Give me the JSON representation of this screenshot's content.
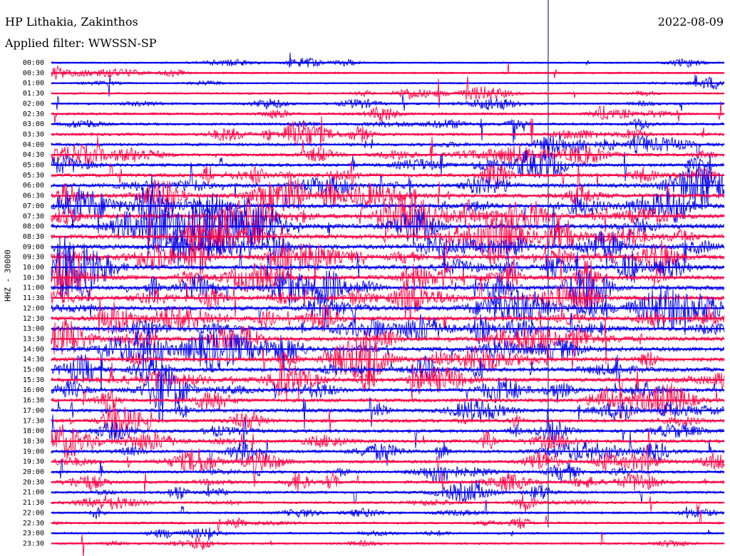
{
  "header": {
    "station": "HP Lithakia, Zakinthos",
    "date": "2022-08-09",
    "filter_text": "Applied filter: WWSSN-SP"
  },
  "colors": {
    "trace_a": "#0000ee",
    "trace_b": "#ff0044",
    "marker": "#000088"
  },
  "chart_data": {
    "type": "line",
    "title": "HP Lithakia, Zakinthos",
    "date": "2022-08-09",
    "filter": "WWSSN-SP",
    "ylabel": "HHZ - 30000",
    "row_labels": [
      "00:00",
      "00:30",
      "01:00",
      "01:30",
      "02:00",
      "02:30",
      "03:00",
      "03:30",
      "04:00",
      "04:30",
      "05:00",
      "05:30",
      "06:00",
      "06:30",
      "07:00",
      "07:30",
      "08:00",
      "08:30",
      "09:00",
      "09:30",
      "10:00",
      "10:30",
      "11:00",
      "11:30",
      "12:00",
      "12:30",
      "13:00",
      "13:30",
      "14:00",
      "14:30",
      "15:00",
      "15:30",
      "16:00",
      "16:30",
      "17:00",
      "17:30",
      "18:00",
      "18:30",
      "19:00",
      "19:30",
      "20:00",
      "20:30",
      "21:00",
      "21:30",
      "22:00",
      "22:30",
      "23:00",
      "23:30"
    ],
    "row_activity": [
      0.15,
      0.2,
      0.15,
      0.25,
      0.3,
      0.35,
      0.4,
      0.45,
      0.5,
      0.55,
      0.6,
      0.7,
      0.8,
      0.85,
      0.9,
      0.95,
      1.0,
      1.0,
      1.0,
      1.0,
      0.95,
      0.95,
      0.95,
      0.9,
      0.9,
      0.9,
      0.9,
      0.9,
      0.9,
      0.85,
      0.85,
      0.8,
      0.75,
      0.7,
      0.7,
      0.65,
      0.6,
      0.6,
      0.6,
      0.55,
      0.5,
      0.45,
      0.4,
      0.35,
      0.3,
      0.3,
      0.25,
      0.25
    ],
    "series_colors_alternate": [
      "blue",
      "red"
    ],
    "grid": false
  }
}
